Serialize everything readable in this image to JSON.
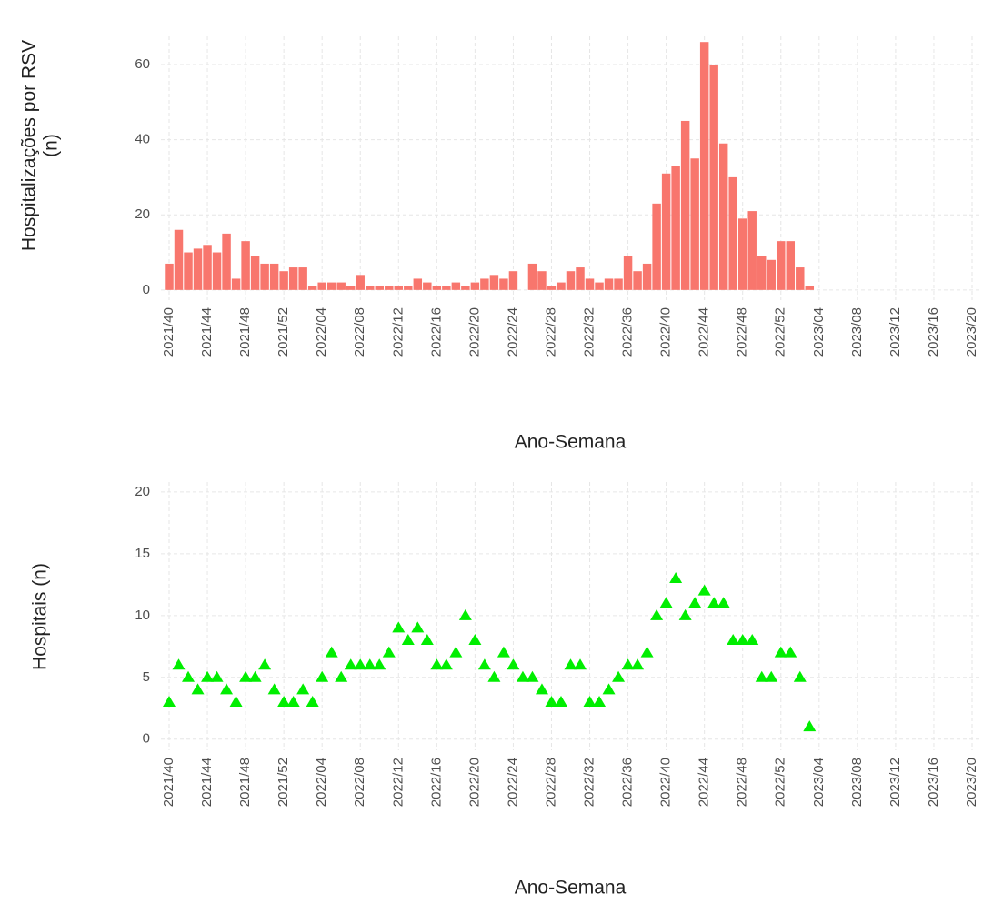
{
  "chart_data": [
    {
      "type": "bar",
      "y_label": [
        "Hospitalizações por RSV",
        "(n)"
      ],
      "x_label": "Ano-Semana",
      "categories": [
        "2021/40",
        null,
        null,
        null,
        "2021/44",
        null,
        null,
        null,
        "2021/48",
        null,
        null,
        null,
        "2021/52",
        null,
        null,
        null,
        "2022/04",
        null,
        null,
        null,
        "2022/08",
        null,
        null,
        null,
        "2022/12",
        null,
        null,
        null,
        "2022/16",
        null,
        null,
        null,
        "2022/20",
        null,
        null,
        null,
        "2022/24",
        null,
        null,
        null,
        "2022/28",
        null,
        null,
        null,
        "2022/32",
        null,
        null,
        null,
        "2022/36",
        null,
        null,
        null,
        "2022/40",
        null,
        null,
        null,
        "2022/44",
        null,
        null,
        null,
        "2022/48",
        null,
        null,
        null,
        "2022/52",
        null,
        null,
        null,
        "2023/04",
        null,
        null,
        null,
        "2023/08",
        null,
        null,
        null,
        "2023/12",
        null,
        null,
        null,
        "2023/16",
        null,
        null,
        null,
        "2023/20"
      ],
      "values": [
        7,
        16,
        10,
        11,
        12,
        10,
        15,
        3,
        13,
        9,
        7,
        7,
        5,
        6,
        6,
        1,
        2,
        2,
        2,
        1,
        4,
        1,
        1,
        1,
        1,
        1,
        3,
        2,
        1,
        1,
        2,
        1,
        2,
        3,
        4,
        3,
        5,
        null,
        7,
        5,
        1,
        2,
        5,
        6,
        3,
        2,
        3,
        3,
        9,
        5,
        7,
        23,
        31,
        33,
        45,
        35,
        66,
        60,
        39,
        30,
        19,
        21,
        9,
        8,
        13,
        13,
        6,
        1,
        null,
        null,
        null,
        null,
        null,
        null,
        null,
        null,
        null,
        null,
        null,
        null,
        null,
        null,
        null,
        null,
        null
      ],
      "color": "#F8766D",
      "ylim": [
        -2.7,
        67.5
      ],
      "yticks": [
        0,
        20,
        40,
        60
      ],
      "grid": true
    },
    {
      "type": "scatter",
      "y_label": [
        "Hospitais (n)"
      ],
      "x_label": "Ano-Semana",
      "categories": [
        "2021/40",
        null,
        null,
        null,
        "2021/44",
        null,
        null,
        null,
        "2021/48",
        null,
        null,
        null,
        "2021/52",
        null,
        null,
        null,
        "2022/04",
        null,
        null,
        null,
        "2022/08",
        null,
        null,
        null,
        "2022/12",
        null,
        null,
        null,
        "2022/16",
        null,
        null,
        null,
        "2022/20",
        null,
        null,
        null,
        "2022/24",
        null,
        null,
        null,
        "2022/28",
        null,
        null,
        null,
        "2022/32",
        null,
        null,
        null,
        "2022/36",
        null,
        null,
        null,
        "2022/40",
        null,
        null,
        null,
        "2022/44",
        null,
        null,
        null,
        "2022/48",
        null,
        null,
        null,
        "2022/52",
        null,
        null,
        null,
        "2023/04",
        null,
        null,
        null,
        "2023/08",
        null,
        null,
        null,
        "2023/12",
        null,
        null,
        null,
        "2023/16",
        null,
        null,
        null,
        "2023/20"
      ],
      "values": [
        3,
        6,
        5,
        4,
        5,
        5,
        4,
        3,
        5,
        5,
        6,
        4,
        3,
        3,
        4,
        3,
        5,
        7,
        5,
        6,
        6,
        6,
        6,
        7,
        9,
        8,
        9,
        8,
        6,
        6,
        7,
        10,
        8,
        6,
        5,
        7,
        6,
        5,
        5,
        4,
        3,
        3,
        6,
        6,
        3,
        3,
        4,
        5,
        6,
        6,
        7,
        10,
        11,
        13,
        10,
        11,
        12,
        11,
        11,
        8,
        8,
        8,
        5,
        5,
        7,
        7,
        5,
        1,
        null,
        null,
        null,
        null,
        null,
        null,
        null,
        null,
        null,
        null,
        null,
        null,
        null,
        null,
        null,
        null,
        null
      ],
      "color": "#00EE00",
      "ylim": [
        -0.9,
        20.8
      ],
      "yticks": [
        0,
        5,
        10,
        15,
        20
      ],
      "grid": true
    }
  ]
}
